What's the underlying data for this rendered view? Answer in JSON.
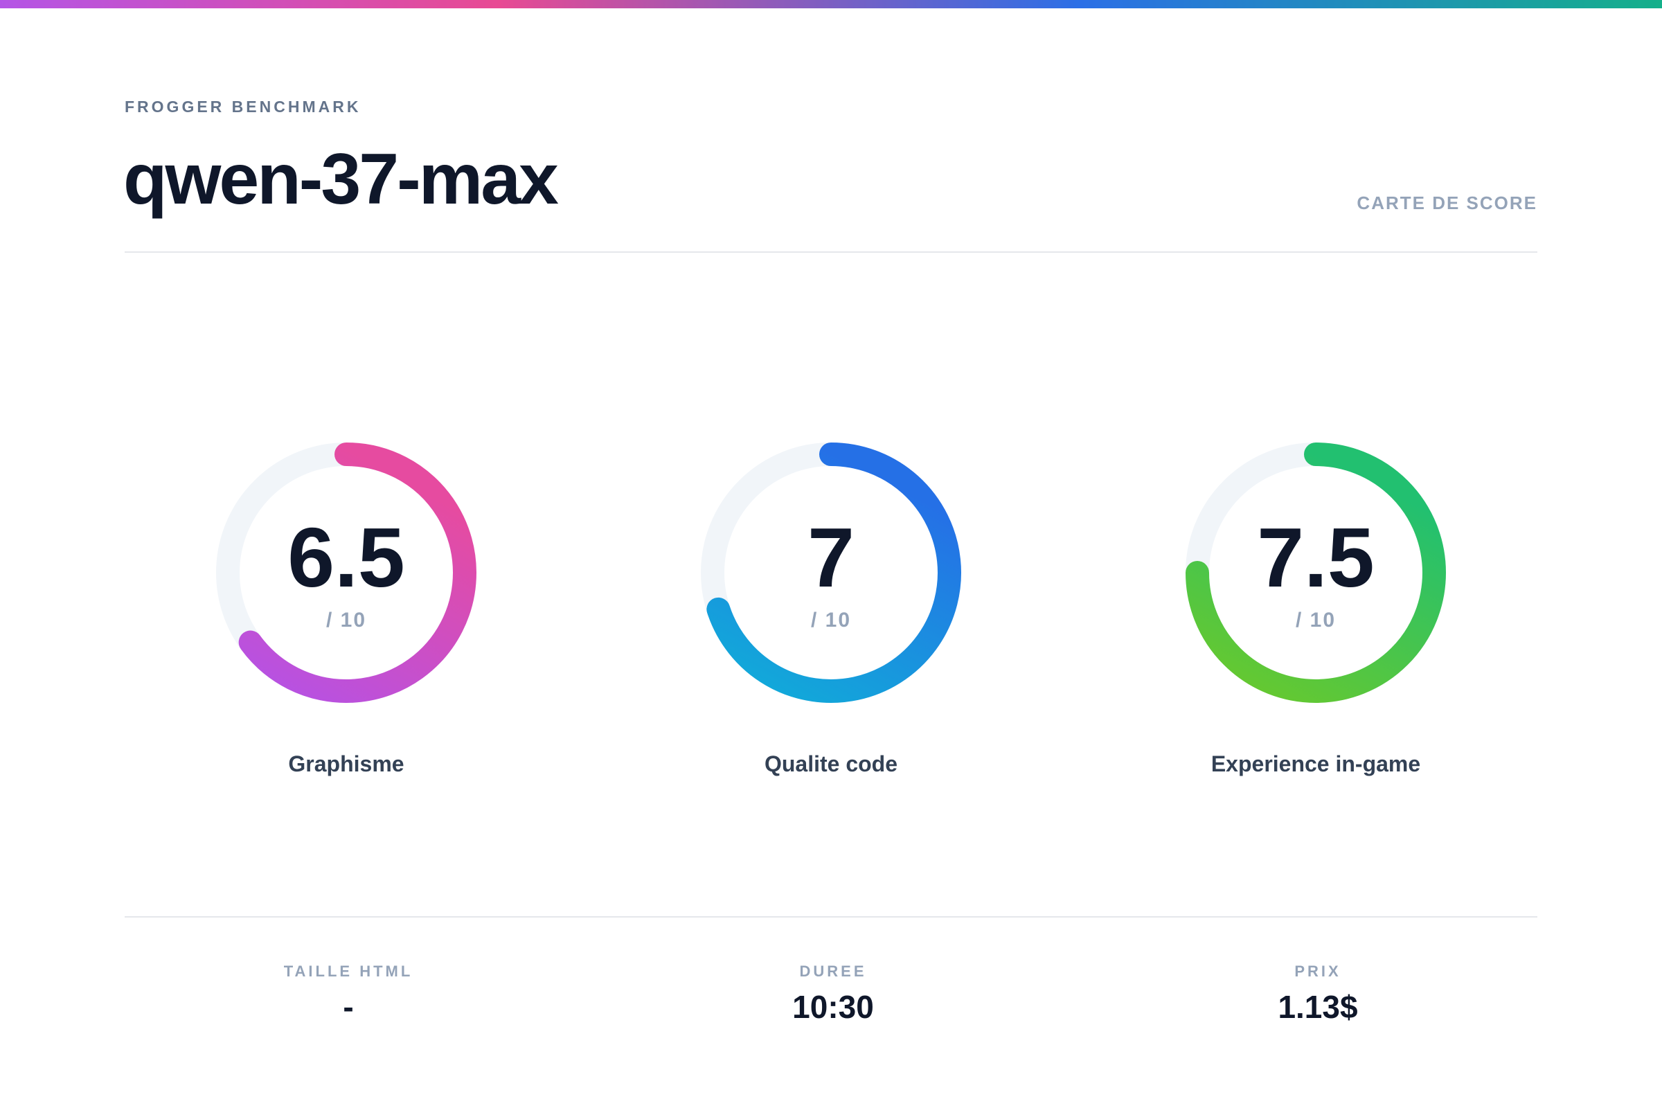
{
  "header": {
    "eyebrow": "FROGGER BENCHMARK",
    "title": "qwen-37-max",
    "tag": "CARTE DE SCORE"
  },
  "scores": [
    {
      "label": "Graphisme",
      "value": 6.5,
      "max": {
        "value": 10,
        "label": "/ 10"
      },
      "colors": [
        "#e64ba0",
        "#b452e6"
      ]
    },
    {
      "label": "Qualite code",
      "value": 7,
      "max": {
        "value": 10,
        "label": "/ 10"
      },
      "colors": [
        "#2570e6",
        "#10aed8"
      ]
    },
    {
      "label": "Experience in-game",
      "value": 7.5,
      "max": {
        "value": 10,
        "label": "/ 10"
      },
      "colors": [
        "#22c070",
        "#6cc92a"
      ]
    }
  ],
  "stats": [
    {
      "label": "TAILLE HTML",
      "value": "-"
    },
    {
      "label": "DUREE",
      "value": "10:30"
    },
    {
      "label": "PRIX",
      "value": "1.13$"
    }
  ]
}
